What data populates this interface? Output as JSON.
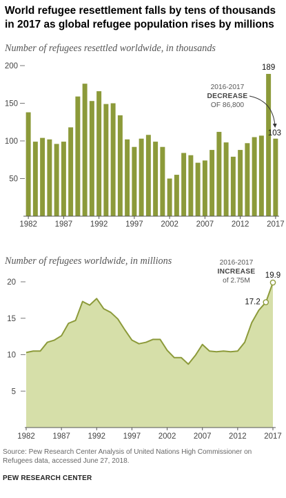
{
  "title": "World refugee resettlement falls by tens of thousands in 2017 as global refugee population rises by millions",
  "chart_data": [
    {
      "type": "bar",
      "subtitle": "Number of refugees resettled worldwide, in thousands",
      "x": [
        1982,
        1983,
        1984,
        1985,
        1986,
        1987,
        1988,
        1989,
        1990,
        1991,
        1992,
        1993,
        1994,
        1995,
        1996,
        1997,
        1998,
        1999,
        2000,
        2001,
        2002,
        2003,
        2004,
        2005,
        2006,
        2007,
        2008,
        2009,
        2010,
        2011,
        2012,
        2013,
        2014,
        2015,
        2016,
        2017
      ],
      "values": [
        138,
        99,
        104,
        102,
        96,
        99,
        118,
        159,
        176,
        153,
        166,
        149,
        150,
        134,
        102,
        92,
        103,
        108,
        99,
        92,
        50,
        55,
        84,
        81,
        71,
        74,
        88,
        112,
        98,
        79,
        88,
        97,
        105,
        107,
        189,
        103
      ],
      "ylim": [
        0,
        200
      ],
      "yticks": [
        50,
        100,
        150,
        200
      ],
      "xticks": [
        "1982",
        "1987",
        "1992",
        "1997",
        "2002",
        "2007",
        "2012",
        "2017"
      ],
      "data_labels": [
        {
          "x": 2016,
          "label": "189"
        },
        {
          "x": 2017,
          "label": "103"
        }
      ],
      "annotation": {
        "line1": "2016-2017",
        "line2": "DECREASE",
        "line3": "OF 86,800"
      },
      "color": "#8c9a3a"
    },
    {
      "type": "area",
      "subtitle": "Number of refugees worldwide, in millions",
      "x": [
        1982,
        1983,
        1984,
        1985,
        1986,
        1987,
        1988,
        1989,
        1990,
        1991,
        1992,
        1993,
        1994,
        1995,
        1996,
        1997,
        1998,
        1999,
        2000,
        2001,
        2002,
        2003,
        2004,
        2005,
        2006,
        2007,
        2008,
        2009,
        2010,
        2011,
        2012,
        2013,
        2014,
        2015,
        2016,
        2017
      ],
      "values": [
        10.3,
        10.5,
        10.5,
        11.7,
        12.0,
        12.6,
        14.3,
        14.7,
        17.3,
        16.8,
        17.7,
        16.3,
        15.8,
        14.9,
        13.4,
        12.0,
        11.5,
        11.7,
        12.1,
        12.1,
        10.6,
        9.6,
        9.6,
        8.7,
        9.9,
        11.4,
        10.5,
        10.4,
        10.5,
        10.4,
        10.5,
        11.7,
        14.4,
        16.1,
        17.2,
        19.9
      ],
      "ylim": [
        0,
        20
      ],
      "yticks": [
        5,
        10,
        15,
        20
      ],
      "xticks": [
        "1982",
        "1987",
        "1992",
        "1997",
        "2002",
        "2007",
        "2012",
        "2017"
      ],
      "data_labels": [
        {
          "x": 2016,
          "label": "17.2"
        },
        {
          "x": 2017,
          "label": "19.9"
        }
      ],
      "annotation": {
        "line1": "2016-2017",
        "line2": "INCREASE",
        "line3": "of 2.75M"
      },
      "line_color": "#8c9a3a",
      "fill_color": "#d6dfa9"
    }
  ],
  "source": "Source: Pew Research Center Analysis of United Nations High Commissioner on Refugees data, accessed June 27, 2018.",
  "brand": "PEW RESEARCH CENTER"
}
